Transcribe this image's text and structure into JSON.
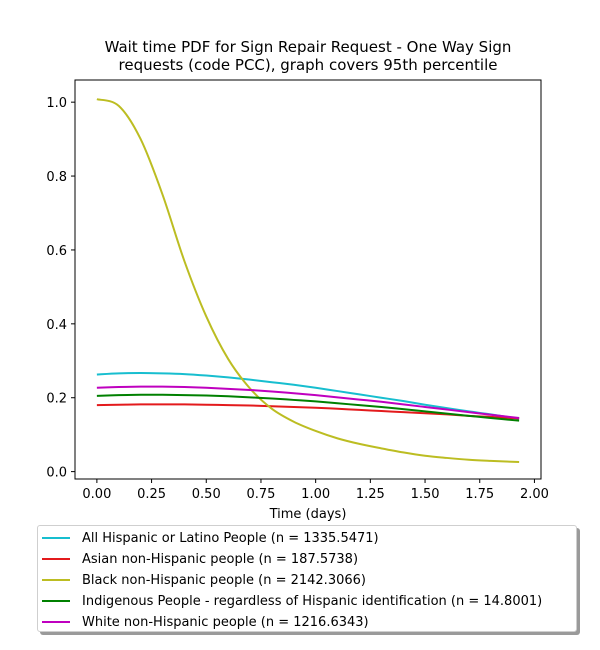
{
  "chart_data": {
    "type": "line",
    "title": "Wait time PDF for Sign Repair Request - One Way Sign requests (code PCC), graph covers 95th percentile",
    "title_lines": [
      "Wait time PDF for Sign Repair Request - One Way Sign",
      "requests (code PCC), graph covers 95th percentile"
    ],
    "xlabel": "Time (days)",
    "ylabel": "",
    "xlim": [
      -0.1,
      2.03
    ],
    "ylim": [
      -0.02,
      1.06
    ],
    "xticks": [
      "0.00",
      "0.25",
      "0.50",
      "0.75",
      "1.00",
      "1.25",
      "1.50",
      "1.75",
      "2.00"
    ],
    "yticks": [
      "0.0",
      "0.2",
      "0.4",
      "0.6",
      "0.8",
      "1.0"
    ],
    "grid": false,
    "legend_position": "below",
    "x": [
      0.0,
      0.1,
      0.2,
      0.3,
      0.4,
      0.5,
      0.6,
      0.7,
      0.8,
      0.9,
      1.0,
      1.1,
      1.2,
      1.3,
      1.4,
      1.5,
      1.6,
      1.7,
      1.8,
      1.93
    ],
    "series": [
      {
        "name": "All Hispanic or Latino People (n = 1335.5471)",
        "color": "#17becf",
        "values": [
          0.263,
          0.266,
          0.267,
          0.266,
          0.264,
          0.26,
          0.255,
          0.249,
          0.242,
          0.235,
          0.227,
          0.218,
          0.209,
          0.2,
          0.191,
          0.181,
          0.172,
          0.163,
          0.155,
          0.143
        ]
      },
      {
        "name": "Asian non-Hispanic people (n = 187.5738)",
        "color": "#e31a1c",
        "values": [
          0.18,
          0.181,
          0.182,
          0.182,
          0.182,
          0.181,
          0.18,
          0.179,
          0.177,
          0.175,
          0.173,
          0.17,
          0.167,
          0.164,
          0.161,
          0.158,
          0.155,
          0.151,
          0.148,
          0.144
        ]
      },
      {
        "name": "Black non-Hispanic people (n = 2142.3066)",
        "color": "#bcbd22",
        "values": [
          1.008,
          0.99,
          0.9,
          0.75,
          0.57,
          0.42,
          0.305,
          0.225,
          0.17,
          0.135,
          0.11,
          0.09,
          0.075,
          0.063,
          0.052,
          0.043,
          0.037,
          0.032,
          0.029,
          0.026
        ]
      },
      {
        "name": "Indigenous People - regardless of Hispanic identification (n = 14.8001)",
        "color": "#008000",
        "values": [
          0.205,
          0.207,
          0.208,
          0.208,
          0.207,
          0.206,
          0.204,
          0.201,
          0.198,
          0.194,
          0.19,
          0.185,
          0.18,
          0.175,
          0.169,
          0.163,
          0.157,
          0.151,
          0.145,
          0.138
        ]
      },
      {
        "name": "White non-Hispanic people (n = 1216.6343)",
        "color": "#bf00bf",
        "values": [
          0.227,
          0.229,
          0.23,
          0.23,
          0.229,
          0.227,
          0.224,
          0.221,
          0.217,
          0.212,
          0.207,
          0.201,
          0.195,
          0.189,
          0.182,
          0.175,
          0.168,
          0.161,
          0.154,
          0.145
        ]
      }
    ]
  }
}
